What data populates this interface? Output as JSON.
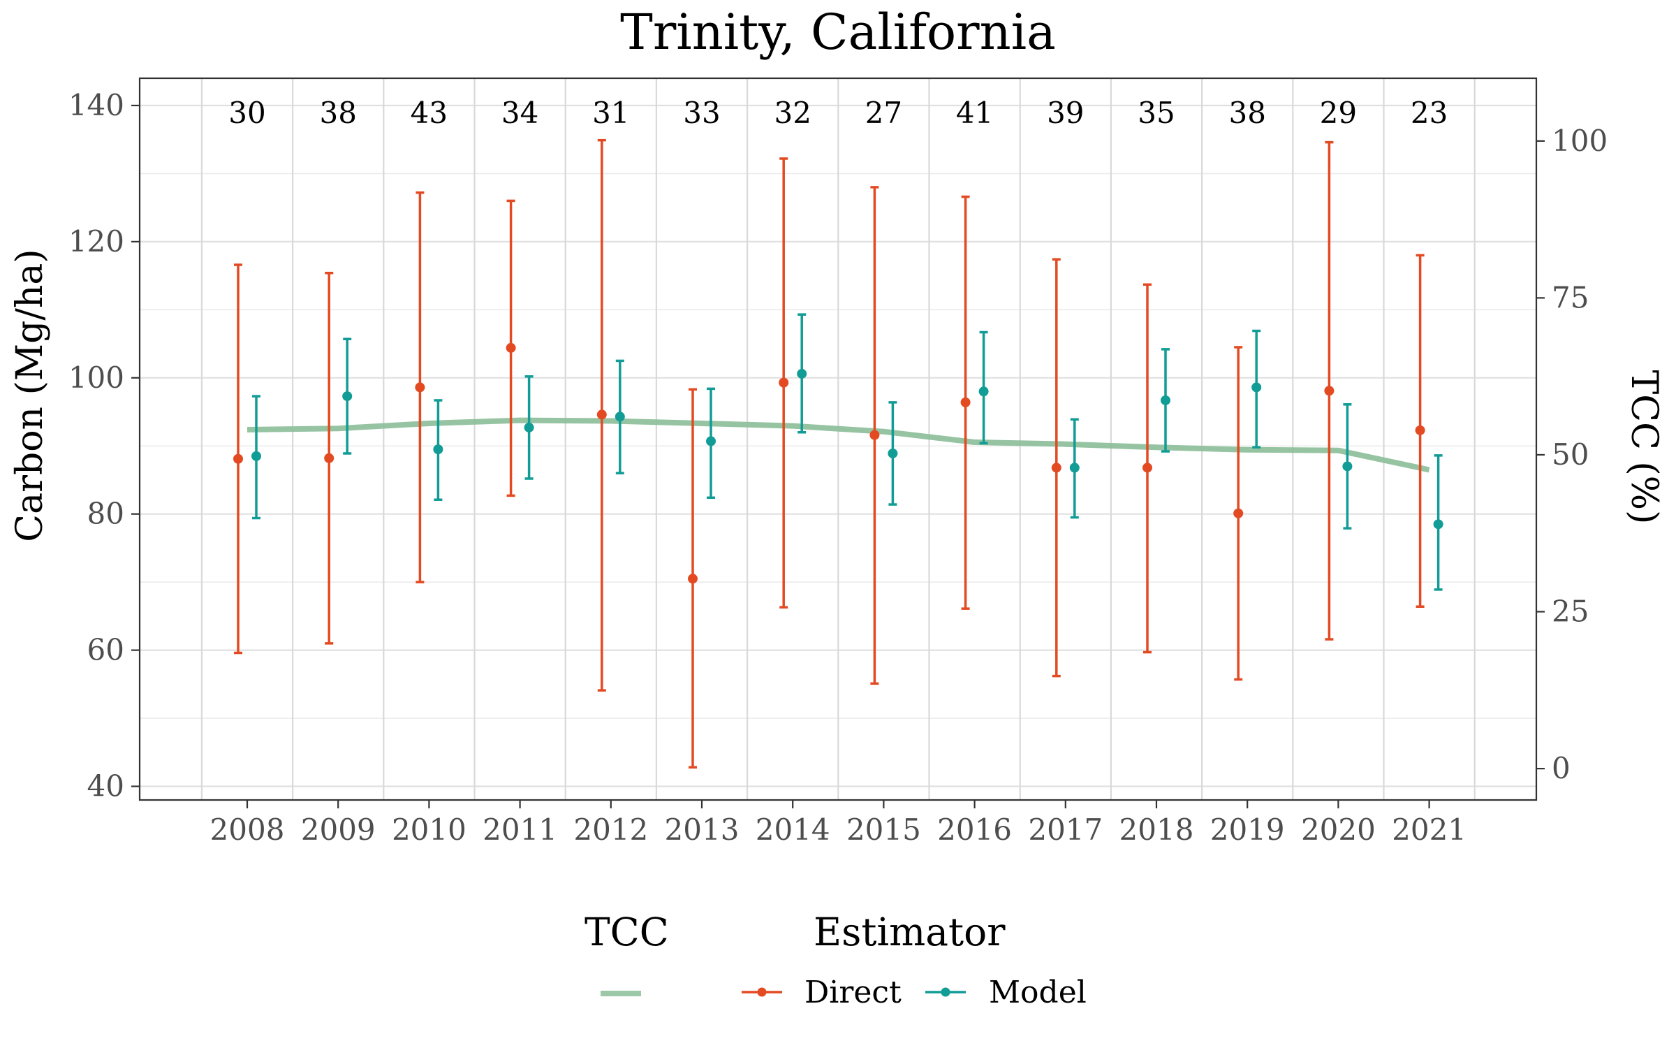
{
  "chart_data": {
    "type": "line",
    "title": "Trinity, California",
    "ylabel": "Carbon (Mg/ha)",
    "y2label": "TCC (%)",
    "categories": [
      "2008",
      "2009",
      "2010",
      "2011",
      "2012",
      "2013",
      "2014",
      "2015",
      "2016",
      "2017",
      "2018",
      "2019",
      "2020",
      "2021"
    ],
    "ylim": [
      38,
      144
    ],
    "yticks": [
      40,
      60,
      80,
      100,
      120,
      140
    ],
    "y2lim": [
      -5,
      110
    ],
    "y2ticks": [
      0,
      25,
      50,
      75,
      100
    ],
    "counts": [
      30,
      38,
      43,
      34,
      31,
      33,
      32,
      27,
      41,
      39,
      35,
      38,
      29,
      23
    ],
    "series": [
      {
        "name": "Direct",
        "color": "#e34a22",
        "values": [
          88.1,
          88.2,
          98.6,
          104.4,
          94.6,
          70.5,
          99.3,
          91.6,
          96.4,
          86.8,
          86.8,
          80.1,
          98.1,
          92.3
        ],
        "lower": [
          59.6,
          61.0,
          70.0,
          82.7,
          54.1,
          42.8,
          66.3,
          55.1,
          66.1,
          56.2,
          59.7,
          55.7,
          61.6,
          66.4
        ],
        "upper": [
          116.6,
          115.4,
          127.2,
          126.0,
          134.9,
          98.3,
          132.2,
          128.0,
          126.6,
          117.4,
          113.7,
          104.5,
          134.6,
          118.0
        ]
      },
      {
        "name": "Model",
        "color": "#119c96",
        "values": [
          88.5,
          97.3,
          89.5,
          92.7,
          94.3,
          90.7,
          100.6,
          88.9,
          98.0,
          86.8,
          96.7,
          98.6,
          87.0,
          78.5
        ],
        "lower": [
          79.4,
          88.9,
          82.1,
          85.2,
          86.0,
          82.4,
          92.0,
          81.4,
          90.4,
          79.5,
          89.2,
          89.8,
          77.9,
          68.9
        ],
        "upper": [
          97.3,
          105.7,
          96.7,
          100.2,
          102.5,
          98.4,
          109.3,
          96.4,
          106.7,
          93.9,
          104.2,
          106.9,
          96.1,
          88.6
        ]
      }
    ],
    "tcc": {
      "name": "TCC",
      "color": "#8bbe98",
      "values": [
        54.0,
        54.2,
        55.0,
        55.5,
        55.4,
        55.0,
        54.6,
        53.7,
        52.0,
        51.7,
        51.2,
        50.8,
        50.7,
        47.6
      ]
    },
    "legend": {
      "position": "bottom",
      "tcc_title": "TCC",
      "estimator_title": "Estimator",
      "estimator_labels": [
        "Direct",
        "Model"
      ]
    },
    "grid": true
  }
}
